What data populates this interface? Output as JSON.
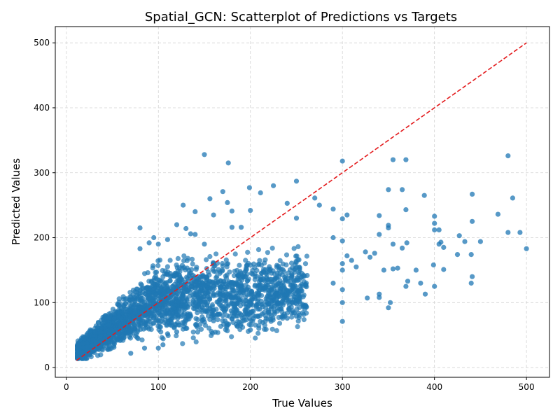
{
  "chart_data": {
    "type": "scatter",
    "title": "Spatial_GCN: Scatterplot of Predictions vs Targets",
    "xlabel": "True Values",
    "ylabel": "Predicted Values",
    "xlim": [
      -12,
      525
    ],
    "ylim": [
      -15,
      525
    ],
    "xticks": [
      0,
      100,
      200,
      300,
      400,
      500
    ],
    "yticks": [
      0,
      100,
      200,
      300,
      400,
      500
    ],
    "grid": true,
    "colors": {
      "points": "#1f77b4",
      "reference_line": "#e31a1c",
      "grid": "#d3d3d3"
    },
    "series": [
      {
        "points": [
          [
            150,
            328
          ],
          [
            176,
            315
          ],
          [
            300,
            318
          ],
          [
            355,
            320
          ],
          [
            369,
            320
          ],
          [
            480,
            326
          ],
          [
            485,
            261
          ],
          [
            469,
            236
          ],
          [
            441,
            267
          ],
          [
            441,
            225
          ],
          [
            427,
            203
          ],
          [
            433,
            194
          ],
          [
            450,
            194
          ],
          [
            440,
            174
          ],
          [
            425,
            174
          ],
          [
            493,
            208
          ],
          [
            480,
            208
          ],
          [
            500,
            183
          ],
          [
            441,
            140
          ],
          [
            440,
            130
          ],
          [
            410,
            151
          ],
          [
            400,
            125
          ],
          [
            390,
            113
          ],
          [
            399,
            158
          ],
          [
            400,
            233
          ],
          [
            400,
            222
          ],
          [
            405,
            212
          ],
          [
            407,
            193
          ],
          [
            405,
            190
          ],
          [
            410,
            185
          ],
          [
            400,
            212
          ],
          [
            389,
            265
          ],
          [
            365,
            274
          ],
          [
            350,
            274
          ],
          [
            369,
            243
          ],
          [
            350,
            219
          ],
          [
            350,
            215
          ],
          [
            340,
            234
          ],
          [
            340,
            205
          ],
          [
            355,
            190
          ],
          [
            365,
            184
          ],
          [
            370,
            192
          ],
          [
            380,
            150
          ],
          [
            385,
            130
          ],
          [
            371,
            133
          ],
          [
            369,
            125
          ],
          [
            352,
            100
          ],
          [
            350,
            92
          ],
          [
            340,
            113
          ],
          [
            340,
            108
          ],
          [
            327,
            107
          ],
          [
            345,
            150
          ],
          [
            355,
            152
          ],
          [
            360,
            153
          ],
          [
            335,
            176
          ],
          [
            325,
            178
          ],
          [
            330,
            170
          ],
          [
            315,
            155
          ],
          [
            310,
            165
          ],
          [
            305,
            172
          ],
          [
            300,
            195
          ],
          [
            305,
            235
          ],
          [
            300,
            229
          ],
          [
            290,
            244
          ],
          [
            270,
            261
          ],
          [
            250,
            287
          ],
          [
            225,
            280
          ],
          [
            199,
            277
          ],
          [
            211,
            269
          ],
          [
            170,
            271
          ],
          [
            156,
            260
          ],
          [
            127,
            250
          ],
          [
            140,
            240
          ],
          [
            175,
            254
          ],
          [
            180,
            241
          ],
          [
            180,
            216
          ],
          [
            190,
            216
          ],
          [
            200,
            242
          ],
          [
            250,
            230
          ],
          [
            240,
            253
          ],
          [
            275,
            250
          ],
          [
            290,
            200
          ],
          [
            300,
            160
          ],
          [
            300,
            150
          ],
          [
            290,
            130
          ],
          [
            300,
            120
          ],
          [
            300,
            100
          ],
          [
            300,
            71
          ],
          [
            250,
            79
          ],
          [
            240,
            76
          ],
          [
            260,
            95
          ],
          [
            250,
            98
          ],
          [
            230,
            100
          ],
          [
            220,
            98
          ],
          [
            210,
            90
          ],
          [
            200,
            85
          ],
          [
            200,
            58
          ],
          [
            180,
            75
          ],
          [
            170,
            80
          ],
          [
            160,
            72
          ],
          [
            150,
            70
          ],
          [
            130,
            60
          ],
          [
            120,
            55
          ],
          [
            110,
            52
          ],
          [
            105,
            35
          ],
          [
            100,
            30
          ],
          [
            85,
            30
          ],
          [
            70,
            22
          ],
          [
            80,
            215
          ],
          [
            90,
            192
          ],
          [
            100,
            190
          ],
          [
            110,
            197
          ],
          [
            120,
            220
          ],
          [
            130,
            214
          ],
          [
            140,
            205
          ],
          [
            150,
            190
          ],
          [
            160,
            235
          ],
          [
            135,
            206
          ],
          [
            95,
            200
          ],
          [
            80,
            183
          ]
        ]
      }
    ],
    "reference_line": {
      "from": [
        11,
        11
      ],
      "to": [
        500,
        500
      ]
    }
  }
}
